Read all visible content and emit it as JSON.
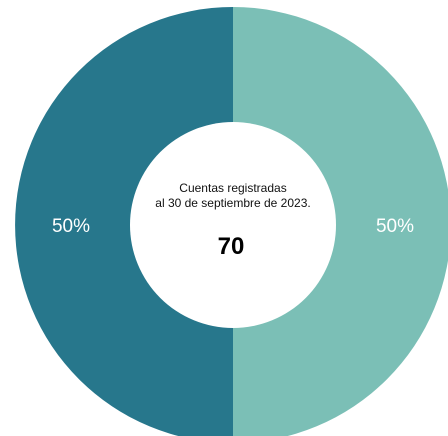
{
  "chart_data": {
    "type": "pie",
    "donut": true,
    "categories": [
      "",
      ""
    ],
    "values": [
      50,
      50
    ],
    "slice_labels": [
      "50%",
      "50%"
    ],
    "colors": [
      "#7bbfb6",
      "#27778c"
    ],
    "center_text": {
      "line1": "Cuentas registradas",
      "line2": "al 30 de septiembre de 2023.",
      "total": "70"
    },
    "title": "",
    "legend": false
  }
}
